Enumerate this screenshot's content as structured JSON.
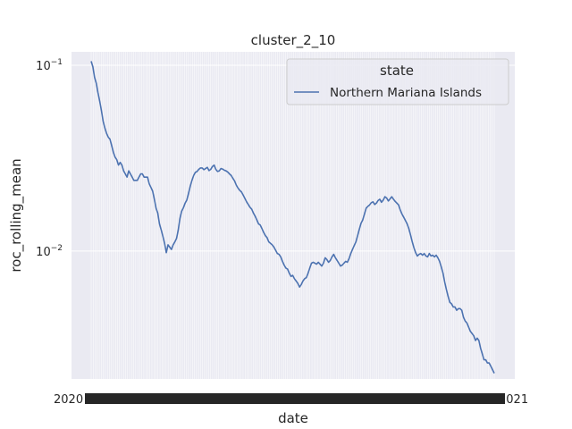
{
  "chart_data": {
    "type": "line",
    "title": "cluster_2_10",
    "xlabel": "date",
    "ylabel": "roc_rolling_mean",
    "yscale": "log",
    "ylim": [
      0.00205,
      0.118
    ],
    "yticks": [
      {
        "value": 0.1,
        "base": "10",
        "exp": "−1"
      },
      {
        "value": 0.01,
        "base": "10",
        "exp": "−2"
      }
    ],
    "xtick_count": 200,
    "xtick_first_label": "2020",
    "xtick_last_label": "2021",
    "grid": true,
    "legend": {
      "title": "state",
      "position": "top-right",
      "entries": [
        "Northern Mariana Islands"
      ]
    },
    "series": [
      {
        "name": "Northern Mariana Islands",
        "color": "#4c72b0",
        "values": [
          0.105,
          0.098,
          0.086,
          0.08,
          0.071,
          0.064,
          0.057,
          0.05,
          0.046,
          0.043,
          0.041,
          0.04,
          0.037,
          0.034,
          0.032,
          0.031,
          0.029,
          0.03,
          0.029,
          0.027,
          0.026,
          0.025,
          0.027,
          0.026,
          0.025,
          0.024,
          0.024,
          0.024,
          0.025,
          0.026,
          0.026,
          0.025,
          0.025,
          0.025,
          0.023,
          0.022,
          0.021,
          0.019,
          0.017,
          0.016,
          0.014,
          0.013,
          0.012,
          0.011,
          0.0098,
          0.0108,
          0.0105,
          0.0102,
          0.0108,
          0.0112,
          0.0117,
          0.013,
          0.015,
          0.0164,
          0.0171,
          0.0181,
          0.0188,
          0.0204,
          0.0223,
          0.024,
          0.0255,
          0.0265,
          0.0268,
          0.0275,
          0.028,
          0.028,
          0.0274,
          0.0278,
          0.0282,
          0.0271,
          0.0275,
          0.0285,
          0.029,
          0.0275,
          0.0268,
          0.027,
          0.0278,
          0.0276,
          0.0272,
          0.027,
          0.0266,
          0.026,
          0.0255,
          0.0246,
          0.0238,
          0.0226,
          0.0218,
          0.0212,
          0.0208,
          0.02,
          0.0192,
          0.0184,
          0.0178,
          0.0172,
          0.0168,
          0.016,
          0.0154,
          0.0147,
          0.014,
          0.0138,
          0.0132,
          0.0126,
          0.0121,
          0.0118,
          0.0112,
          0.011,
          0.0108,
          0.0105,
          0.0101,
          0.0097,
          0.0096,
          0.0093,
          0.0088,
          0.0084,
          0.0081,
          0.008,
          0.0076,
          0.0073,
          0.0074,
          0.0071,
          0.0069,
          0.0067,
          0.0064,
          0.0066,
          0.0069,
          0.0071,
          0.0072,
          0.0076,
          0.0081,
          0.0086,
          0.0087,
          0.0086,
          0.0085,
          0.0087,
          0.0085,
          0.0083,
          0.0086,
          0.0092,
          0.009,
          0.0087,
          0.0089,
          0.0093,
          0.0096,
          0.0092,
          0.0089,
          0.0086,
          0.0083,
          0.0084,
          0.0086,
          0.0088,
          0.0087,
          0.0091,
          0.0097,
          0.0102,
          0.0107,
          0.0112,
          0.0121,
          0.0131,
          0.0141,
          0.0147,
          0.0158,
          0.017,
          0.0174,
          0.0177,
          0.0182,
          0.0184,
          0.0178,
          0.0181,
          0.0187,
          0.019,
          0.0183,
          0.0188,
          0.0196,
          0.0193,
          0.0186,
          0.0191,
          0.0196,
          0.019,
          0.0185,
          0.0181,
          0.0177,
          0.0166,
          0.0158,
          0.0152,
          0.0146,
          0.014,
          0.0132,
          0.0122,
          0.0112,
          0.0104,
          0.0098,
          0.0094,
          0.0096,
          0.0097,
          0.0095,
          0.0097,
          0.0094,
          0.0093,
          0.0097,
          0.0094,
          0.0095,
          0.0093,
          0.0095,
          0.0092,
          0.0088,
          0.0082,
          0.0076,
          0.0068,
          0.0062,
          0.0057,
          0.0053,
          0.0052,
          0.005,
          0.005,
          0.0048,
          0.0049,
          0.0049,
          0.0048,
          0.0044,
          0.0042,
          0.0041,
          0.0039,
          0.0037,
          0.0036,
          0.0035,
          0.0033,
          0.0034,
          0.0033,
          0.003,
          0.0028,
          0.0026,
          0.0026,
          0.0025,
          0.0025,
          0.0024,
          0.0023,
          0.0022
        ]
      }
    ]
  }
}
